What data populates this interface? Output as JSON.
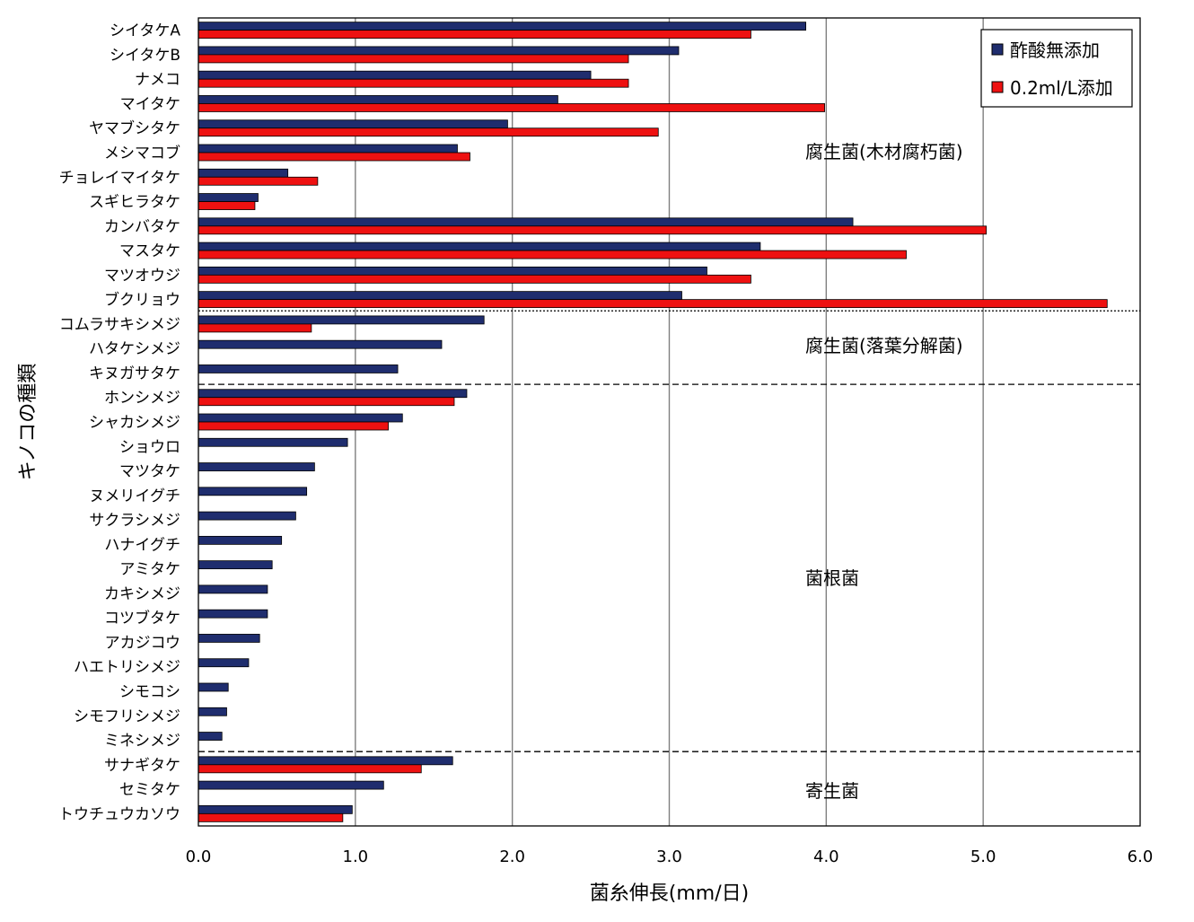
{
  "chart_data": {
    "type": "bar",
    "orientation": "horizontal",
    "xlabel": "菌糸伸長(mm/日)",
    "ylabel": "キノコの種類",
    "xlim": [
      0,
      6
    ],
    "xticks": [
      "0.0",
      "1.0",
      "2.0",
      "3.0",
      "4.0",
      "5.0",
      "6.0"
    ],
    "grid": "vertical",
    "legend_position": "top-right",
    "categories": [
      "シイタケA",
      "シイタケB",
      "ナメコ",
      "マイタケ",
      "ヤマブシタケ",
      "メシマコブ",
      "チョレイマイタケ",
      "スギヒラタケ",
      "カンバタケ",
      "マスタケ",
      "マツオウジ",
      "ブクリョウ",
      "コムラサキシメジ",
      "ハタケシメジ",
      "キヌガサタケ",
      "ホンシメジ",
      "シャカシメジ",
      "ショウロ",
      "マツタケ",
      "ヌメリイグチ",
      "サクラシメジ",
      "ハナイグチ",
      "アミタケ",
      "カキシメジ",
      "コツブタケ",
      "アカジコウ",
      "ハエトリシメジ",
      "シモコシ",
      "シモフリシメジ",
      "ミネシメジ",
      "サナギタケ",
      "セミタケ",
      "トウチュウカソウ"
    ],
    "series": [
      {
        "name": "酢酸無添加",
        "color": "#1f2d6e",
        "values": [
          3.87,
          3.06,
          2.5,
          2.29,
          1.97,
          1.65,
          0.57,
          0.38,
          4.17,
          3.58,
          3.24,
          3.08,
          1.82,
          1.55,
          1.27,
          1.71,
          1.3,
          0.95,
          0.74,
          0.69,
          0.62,
          0.53,
          0.47,
          0.44,
          0.44,
          0.39,
          0.32,
          0.19,
          0.18,
          0.15,
          1.62,
          1.18,
          0.98
        ]
      },
      {
        "name": "0.2ml/L添加",
        "color": "#ee1111",
        "values": [
          3.52,
          2.74,
          2.74,
          3.99,
          2.93,
          1.73,
          0.76,
          0.36,
          5.02,
          4.51,
          3.52,
          5.79,
          0.72,
          null,
          null,
          1.63,
          1.21,
          null,
          null,
          null,
          null,
          null,
          null,
          null,
          null,
          null,
          null,
          null,
          null,
          null,
          1.42,
          null,
          0.92
        ]
      }
    ],
    "groups": [
      {
        "label": "腐生菌(木材腐朽菌)",
        "start": 0,
        "end": 11
      },
      {
        "label": "腐生菌(落葉分解菌)",
        "start": 12,
        "end": 14
      },
      {
        "label": "菌根菌",
        "start": 15,
        "end": 29
      },
      {
        "label": "寄生菌",
        "start": 30,
        "end": 32
      }
    ]
  }
}
